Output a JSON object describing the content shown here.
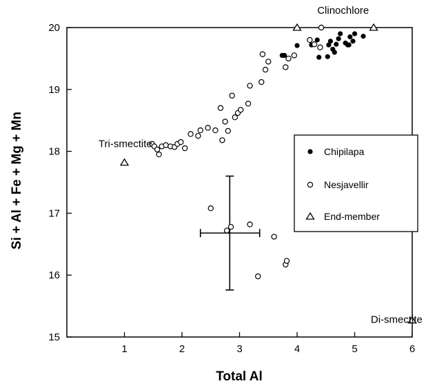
{
  "chart_data": {
    "type": "scatter",
    "title": "",
    "xlabel": "Total Al",
    "ylabel": "Si + Al + Fe + Mg + Mn",
    "xlim": [
      0,
      6
    ],
    "ylim": [
      15,
      20
    ],
    "x_ticks": [
      "1",
      "2",
      "3",
      "4",
      "5",
      "6"
    ],
    "y_ticks": [
      "15",
      "16",
      "17",
      "18",
      "19",
      "20"
    ],
    "grid": false,
    "legend_position": "right",
    "series": [
      {
        "name": "Chipilapa",
        "marker": "filled-circle",
        "points": [
          [
            3.74,
            19.55
          ],
          [
            3.78,
            19.55
          ],
          [
            4.0,
            19.71
          ],
          [
            4.38,
            19.52
          ],
          [
            4.53,
            19.53
          ],
          [
            4.55,
            19.72
          ],
          [
            4.58,
            19.78
          ],
          [
            4.62,
            19.65
          ],
          [
            4.65,
            19.6
          ],
          [
            4.68,
            19.73
          ],
          [
            4.72,
            19.82
          ],
          [
            4.75,
            19.9
          ],
          [
            4.84,
            19.75
          ],
          [
            4.88,
            19.72
          ],
          [
            4.92,
            19.85
          ],
          [
            4.97,
            19.78
          ],
          [
            5.0,
            19.9
          ],
          [
            5.15,
            19.86
          ],
          [
            4.25,
            19.72
          ],
          [
            4.35,
            19.8
          ],
          [
            4.9,
            19.72
          ]
        ]
      },
      {
        "name": "Nesjavellir",
        "marker": "open-circle",
        "points": [
          [
            1.48,
            18.12
          ],
          [
            1.52,
            18.08
          ],
          [
            1.57,
            18.03
          ],
          [
            1.6,
            17.95
          ],
          [
            1.65,
            18.08
          ],
          [
            1.72,
            18.1
          ],
          [
            1.8,
            18.08
          ],
          [
            1.87,
            18.07
          ],
          [
            1.92,
            18.12
          ],
          [
            1.98,
            18.15
          ],
          [
            2.05,
            18.05
          ],
          [
            2.15,
            18.28
          ],
          [
            2.28,
            18.25
          ],
          [
            2.32,
            18.34
          ],
          [
            2.45,
            18.38
          ],
          [
            2.58,
            18.34
          ],
          [
            2.67,
            18.7
          ],
          [
            2.7,
            18.18
          ],
          [
            2.75,
            18.48
          ],
          [
            2.8,
            18.33
          ],
          [
            2.87,
            18.9
          ],
          [
            2.92,
            18.55
          ],
          [
            2.97,
            18.62
          ],
          [
            3.02,
            18.67
          ],
          [
            3.15,
            18.77
          ],
          [
            3.18,
            19.06
          ],
          [
            3.38,
            19.12
          ],
          [
            3.4,
            19.57
          ],
          [
            3.45,
            19.32
          ],
          [
            3.5,
            19.45
          ],
          [
            3.8,
            19.36
          ],
          [
            3.85,
            19.5
          ],
          [
            3.95,
            19.55
          ],
          [
            4.22,
            19.8
          ],
          [
            4.3,
            19.73
          ],
          [
            4.4,
            19.68
          ],
          [
            4.42,
            20.0
          ],
          [
            2.5,
            17.08
          ],
          [
            2.78,
            16.72
          ],
          [
            2.85,
            16.78
          ],
          [
            3.18,
            16.82
          ],
          [
            3.32,
            15.98
          ],
          [
            3.6,
            16.62
          ],
          [
            3.8,
            16.17
          ],
          [
            3.82,
            16.23
          ]
        ]
      },
      {
        "name": "End-member",
        "marker": "open-triangle",
        "points": [
          [
            1.0,
            17.82
          ],
          [
            4.0,
            20.0
          ],
          [
            5.33,
            20.0
          ],
          [
            6.0,
            15.27
          ]
        ]
      }
    ],
    "error_bar": {
      "x": 2.83,
      "y": 16.68,
      "x_range": [
        2.32,
        3.35
      ],
      "y_range": [
        15.76,
        17.6
      ]
    },
    "annotations": [
      {
        "text": "Clinochlore",
        "x": 4.35,
        "y": 20.22
      },
      {
        "text": "Tri-smectite",
        "x": 0.55,
        "y": 18.07
      },
      {
        "text": "Di-smectite",
        "x": 5.28,
        "y": 15.23
      }
    ]
  }
}
